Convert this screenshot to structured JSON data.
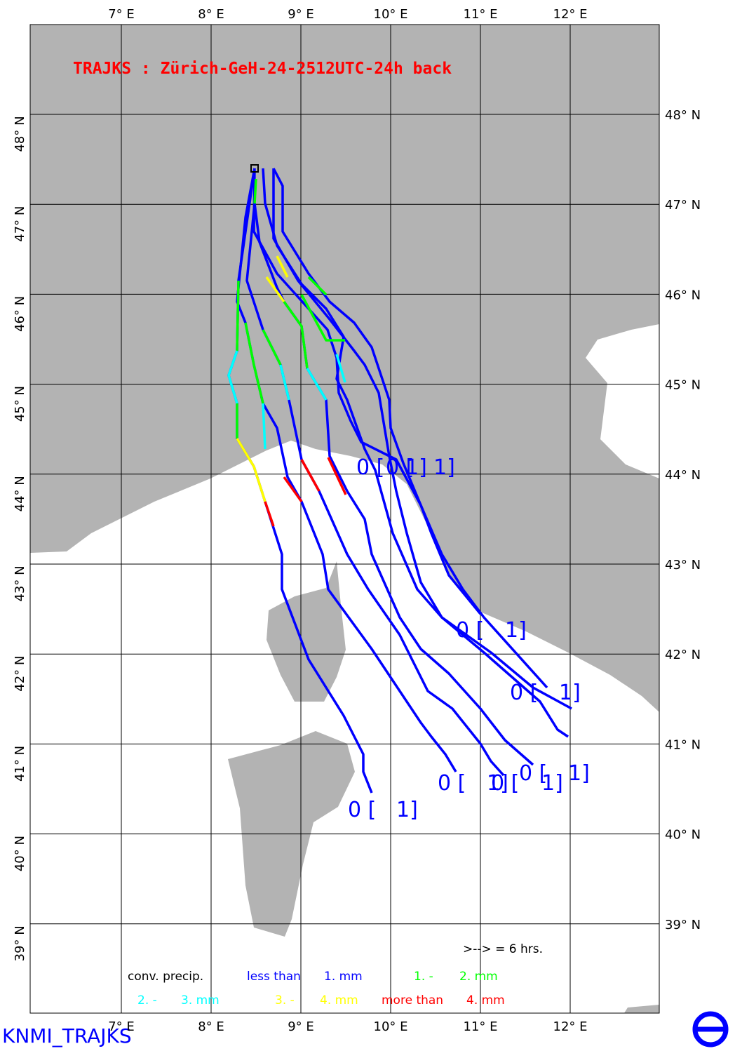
{
  "header": {
    "title": "TRAJKS : Zürich-GeH-24-2512UTC-24h back"
  },
  "lon_labels": [
    "7° E",
    "8° E",
    "9° E",
    "10° E",
    "11° E",
    "12° E"
  ],
  "lat_labels": [
    "48° N",
    "47° N",
    "46° N",
    "45° N",
    "44° N",
    "43° N",
    "42° N",
    "41° N",
    "40° N",
    "39° N"
  ],
  "end_labels": [
    "0 [",
    "0 [",
    "1]",
    "1]",
    "0 [",
    "1]",
    "0 [",
    "1]",
    "0 [",
    "1]",
    "0 [",
    "1]",
    "0 [",
    "1]",
    "0 [",
    "1]"
  ],
  "legend": {
    "arrow": ">-->  =  6 hrs.",
    "title": "conv. precip.",
    "items": [
      "less than",
      "1. mm",
      "1. -",
      "2. mm",
      "2. -",
      "3. mm",
      "3. -",
      "4. mm",
      "more than",
      "4. mm"
    ]
  },
  "footer": "KNMI_TRAJKS"
}
